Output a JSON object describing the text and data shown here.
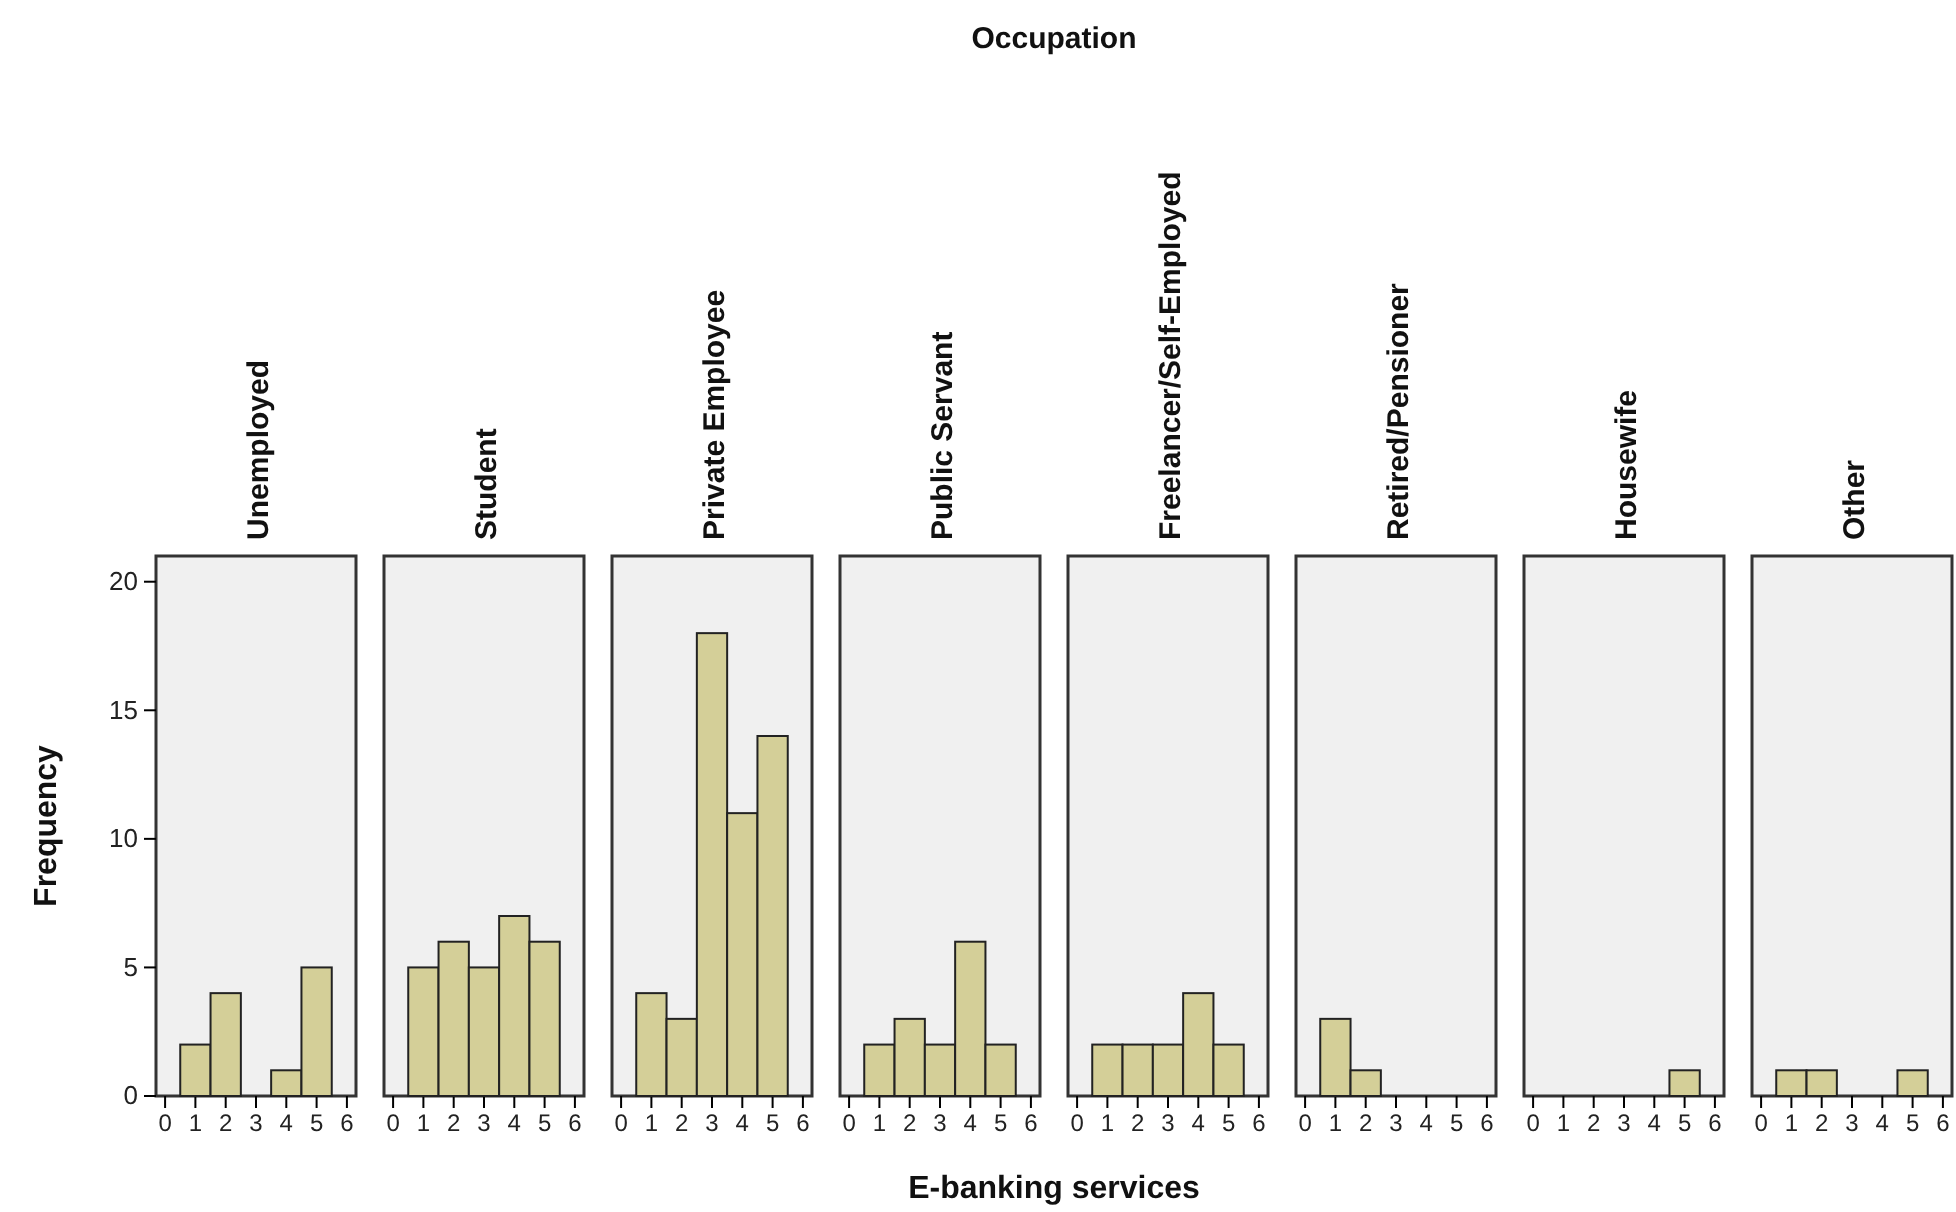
{
  "chart_data": [
    {
      "type": "histogram",
      "title": "Unemployed",
      "ylabel": "Frequency",
      "annotations": [
        "Occupation",
        "E-banking services"
      ],
      "bins": [
        0.5,
        1.5,
        2.5,
        3.5,
        4.5,
        5.5
      ],
      "values": [
        2,
        4,
        0,
        1,
        5
      ],
      "color": "#d4cf98",
      "xlim": [
        -0.3,
        6.3
      ],
      "xticks": [
        0,
        1,
        2,
        3,
        4,
        5,
        6
      ],
      "ylim": [
        0,
        21
      ],
      "yticks": [
        0,
        5,
        10,
        15,
        20
      ]
    },
    {
      "type": "histogram",
      "title": "Student",
      "bins": [
        0.5,
        1.5,
        2.5,
        3.5,
        4.5,
        5.5
      ],
      "values": [
        5,
        6,
        5,
        7,
        6
      ],
      "color": "#d4cf98",
      "xlim": [
        -0.3,
        6.3
      ],
      "xticks": [
        0,
        1,
        2,
        3,
        4,
        5,
        6
      ],
      "ylim": [
        0,
        21
      ],
      "tick_labels": "x"
    },
    {
      "type": "histogram",
      "title": "Private Employee",
      "bins": [
        0.5,
        1.5,
        2.5,
        3.5,
        4.5,
        5.5
      ],
      "values": [
        4,
        3,
        18,
        11,
        14
      ],
      "color": "#d4cf98",
      "xlim": [
        -0.3,
        6.3
      ],
      "xticks": [
        0,
        1,
        2,
        3,
        4,
        5,
        6
      ],
      "ylim": [
        0,
        21
      ],
      "tick_labels": "x"
    },
    {
      "type": "histogram",
      "title": "Public Servant",
      "bins": [
        0.5,
        1.5,
        2.5,
        3.5,
        4.5,
        5.5
      ],
      "values": [
        2,
        3,
        2,
        6,
        2
      ],
      "color": "#d4cf98",
      "xlim": [
        -0.3,
        6.3
      ],
      "xticks": [
        0,
        1,
        2,
        3,
        4,
        5,
        6
      ],
      "ylim": [
        0,
        21
      ],
      "tick_labels": "x"
    },
    {
      "type": "histogram",
      "title": "Freelancer/Self-Employed",
      "bins": [
        0.5,
        1.5,
        2.5,
        3.5,
        4.5,
        5.5
      ],
      "values": [
        2,
        2,
        2,
        4,
        2
      ],
      "color": "#d4cf98",
      "xlim": [
        -0.3,
        6.3
      ],
      "xticks": [
        0,
        1,
        2,
        3,
        4,
        5,
        6
      ],
      "ylim": [
        0,
        21
      ],
      "tick_labels": "x"
    },
    {
      "type": "histogram",
      "title": "Retired/Pensioner",
      "bins": [
        0.5,
        1.5,
        2.5,
        3.5,
        4.5,
        5.5
      ],
      "values": [
        3,
        1,
        0,
        0,
        0
      ],
      "color": "#d4cf98",
      "xlim": [
        -0.3,
        6.3
      ],
      "xticks": [
        0,
        1,
        2,
        3,
        4,
        5,
        6
      ],
      "ylim": [
        0,
        21
      ],
      "tick_labels": "x"
    },
    {
      "type": "histogram",
      "title": "Housewife",
      "bins": [
        0.5,
        1.5,
        2.5,
        3.5,
        4.5,
        5.5
      ],
      "values": [
        0,
        0,
        0,
        0,
        1
      ],
      "color": "#d4cf98",
      "xlim": [
        -0.3,
        6.3
      ],
      "xticks": [
        0,
        1,
        2,
        3,
        4,
        5,
        6
      ],
      "ylim": [
        0,
        21
      ],
      "tick_labels": "x"
    },
    {
      "type": "histogram",
      "title": "Other",
      "bins": [
        0.5,
        1.5,
        2.5,
        3.5,
        4.5,
        5.5
      ],
      "values": [
        1,
        1,
        0,
        0,
        1
      ],
      "color": "#d4cf98",
      "xlim": [
        -0.3,
        6.3
      ],
      "xticks": [
        0,
        1,
        2,
        3,
        4,
        5,
        6
      ],
      "ylim": [
        0,
        21
      ],
      "tick_labels": "x"
    }
  ]
}
